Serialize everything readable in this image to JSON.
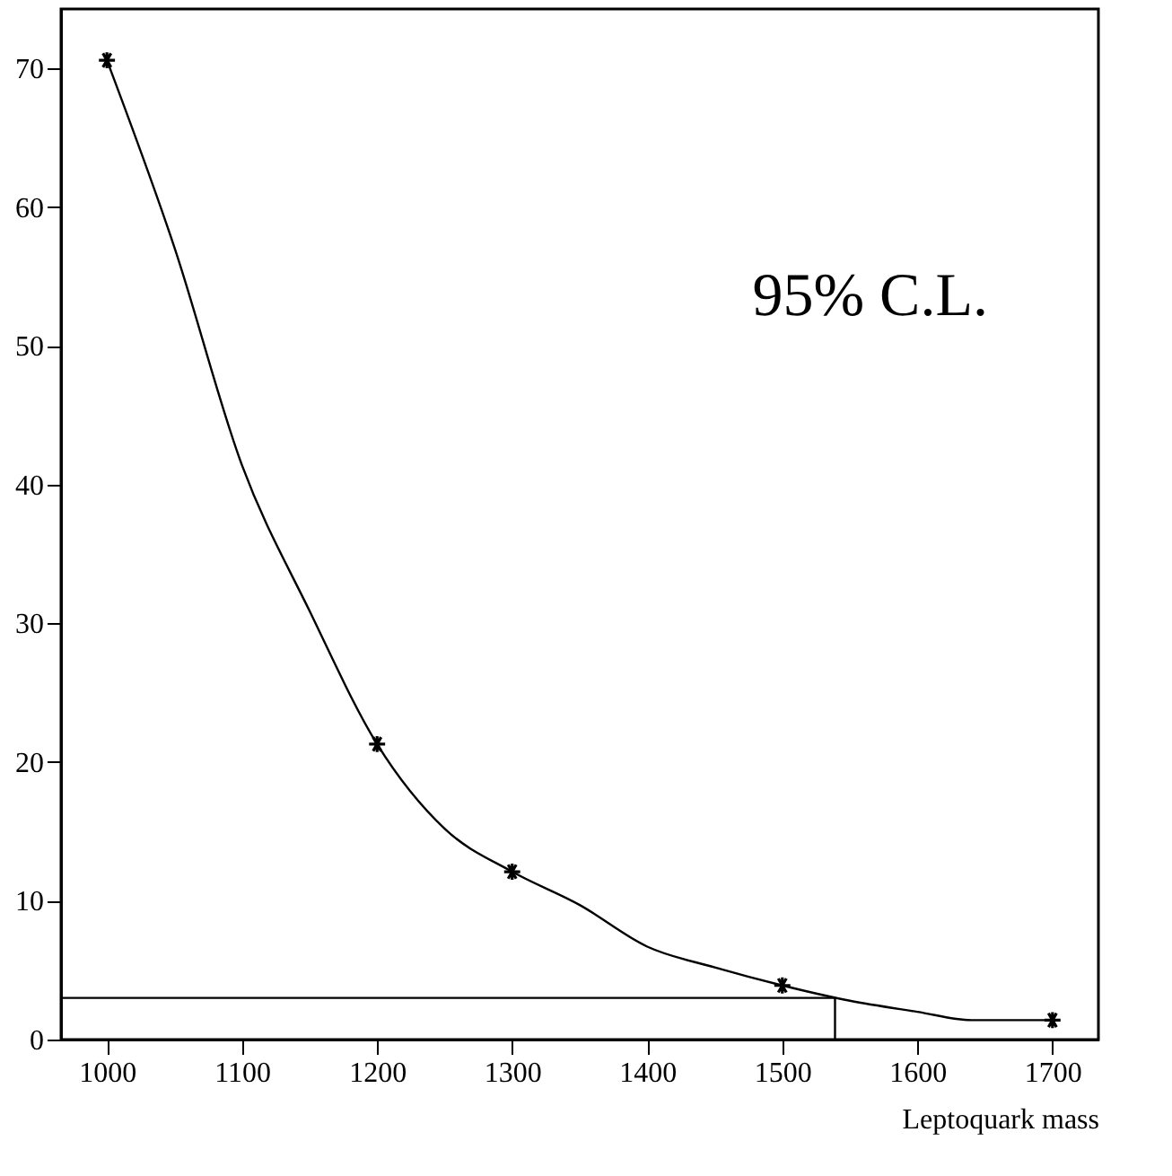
{
  "chart_data": {
    "type": "scatter",
    "xlabel": "Leptoquark mass",
    "annotations": [
      "95% C.L."
    ],
    "xlim": [
      966,
      1734
    ],
    "ylim": [
      0,
      74.3
    ],
    "xticks": [
      1000,
      1100,
      1200,
      1300,
      1400,
      1500,
      1600,
      1700
    ],
    "yticks": [
      0,
      10,
      20,
      30,
      40,
      50,
      60,
      70
    ],
    "grid": false,
    "legend": false,
    "marker": "cross",
    "series": [
      {
        "type": "scatter",
        "color": "#000000",
        "x": [
          1000,
          1200,
          1300,
          1500,
          1700
        ],
        "values": [
          70.6,
          21.3,
          12.1,
          3.9,
          1.4
        ]
      },
      {
        "type": "line",
        "color": "#000000",
        "marker": "none",
        "x": [
          1000,
          1050,
          1100,
          1150,
          1200,
          1250,
          1300,
          1350,
          1400,
          1450,
          1500,
          1550,
          1600,
          1640,
          1700
        ],
        "values": [
          70.6,
          57.1,
          41.4,
          30.9,
          21.3,
          15.2,
          12.1,
          9.7,
          6.7,
          5.2,
          3.9,
          2.8,
          2.0,
          1.4,
          1.4
        ]
      },
      {
        "type": "line",
        "color": "#000000",
        "marker": "none",
        "x": [
          966,
          1539,
          1539
        ],
        "values": [
          3.0,
          3.0,
          0
        ]
      }
    ]
  }
}
